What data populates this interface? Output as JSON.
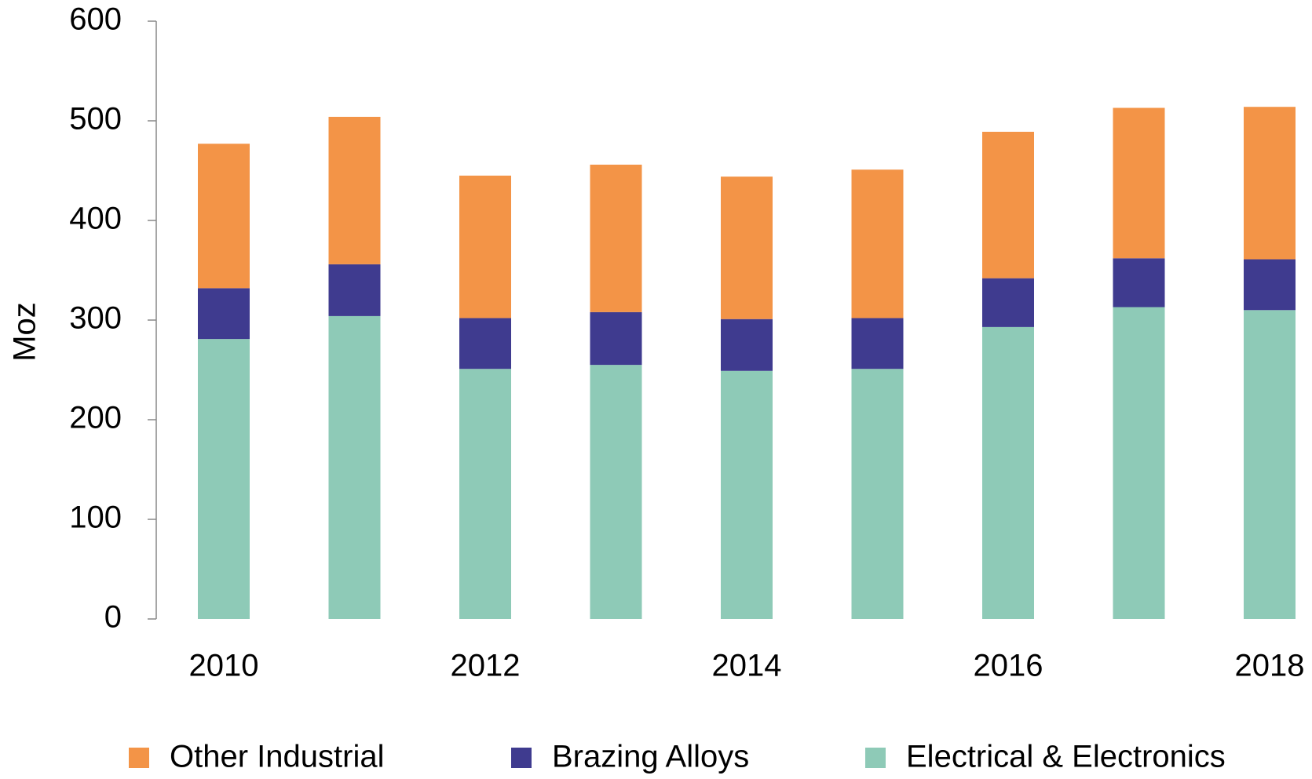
{
  "chart_data": {
    "type": "stacked_bar",
    "y_label": "Moz",
    "categories": [
      "2010",
      null,
      "2012",
      null,
      "2014",
      null,
      "2016",
      null,
      "2018"
    ],
    "series": [
      {
        "name": "Other Industrial",
        "color": "#f39447",
        "values": [
          145,
          148,
          143,
          148,
          143,
          149,
          147,
          151,
          153
        ]
      },
      {
        "name": "Brazing Alloys",
        "color": "#3f3b8f",
        "values": [
          51,
          52,
          51,
          53,
          52,
          51,
          49,
          49,
          51
        ]
      },
      {
        "name": "Electrical & Electronics",
        "color": "#8ecab7",
        "values": [
          281,
          304,
          251,
          255,
          249,
          251,
          293,
          313,
          310
        ]
      }
    ],
    "ylim": [
      0,
      600
    ],
    "yticks": [
      0,
      100,
      200,
      300,
      400,
      500,
      600
    ],
    "grid": false,
    "legend": "bottom"
  }
}
